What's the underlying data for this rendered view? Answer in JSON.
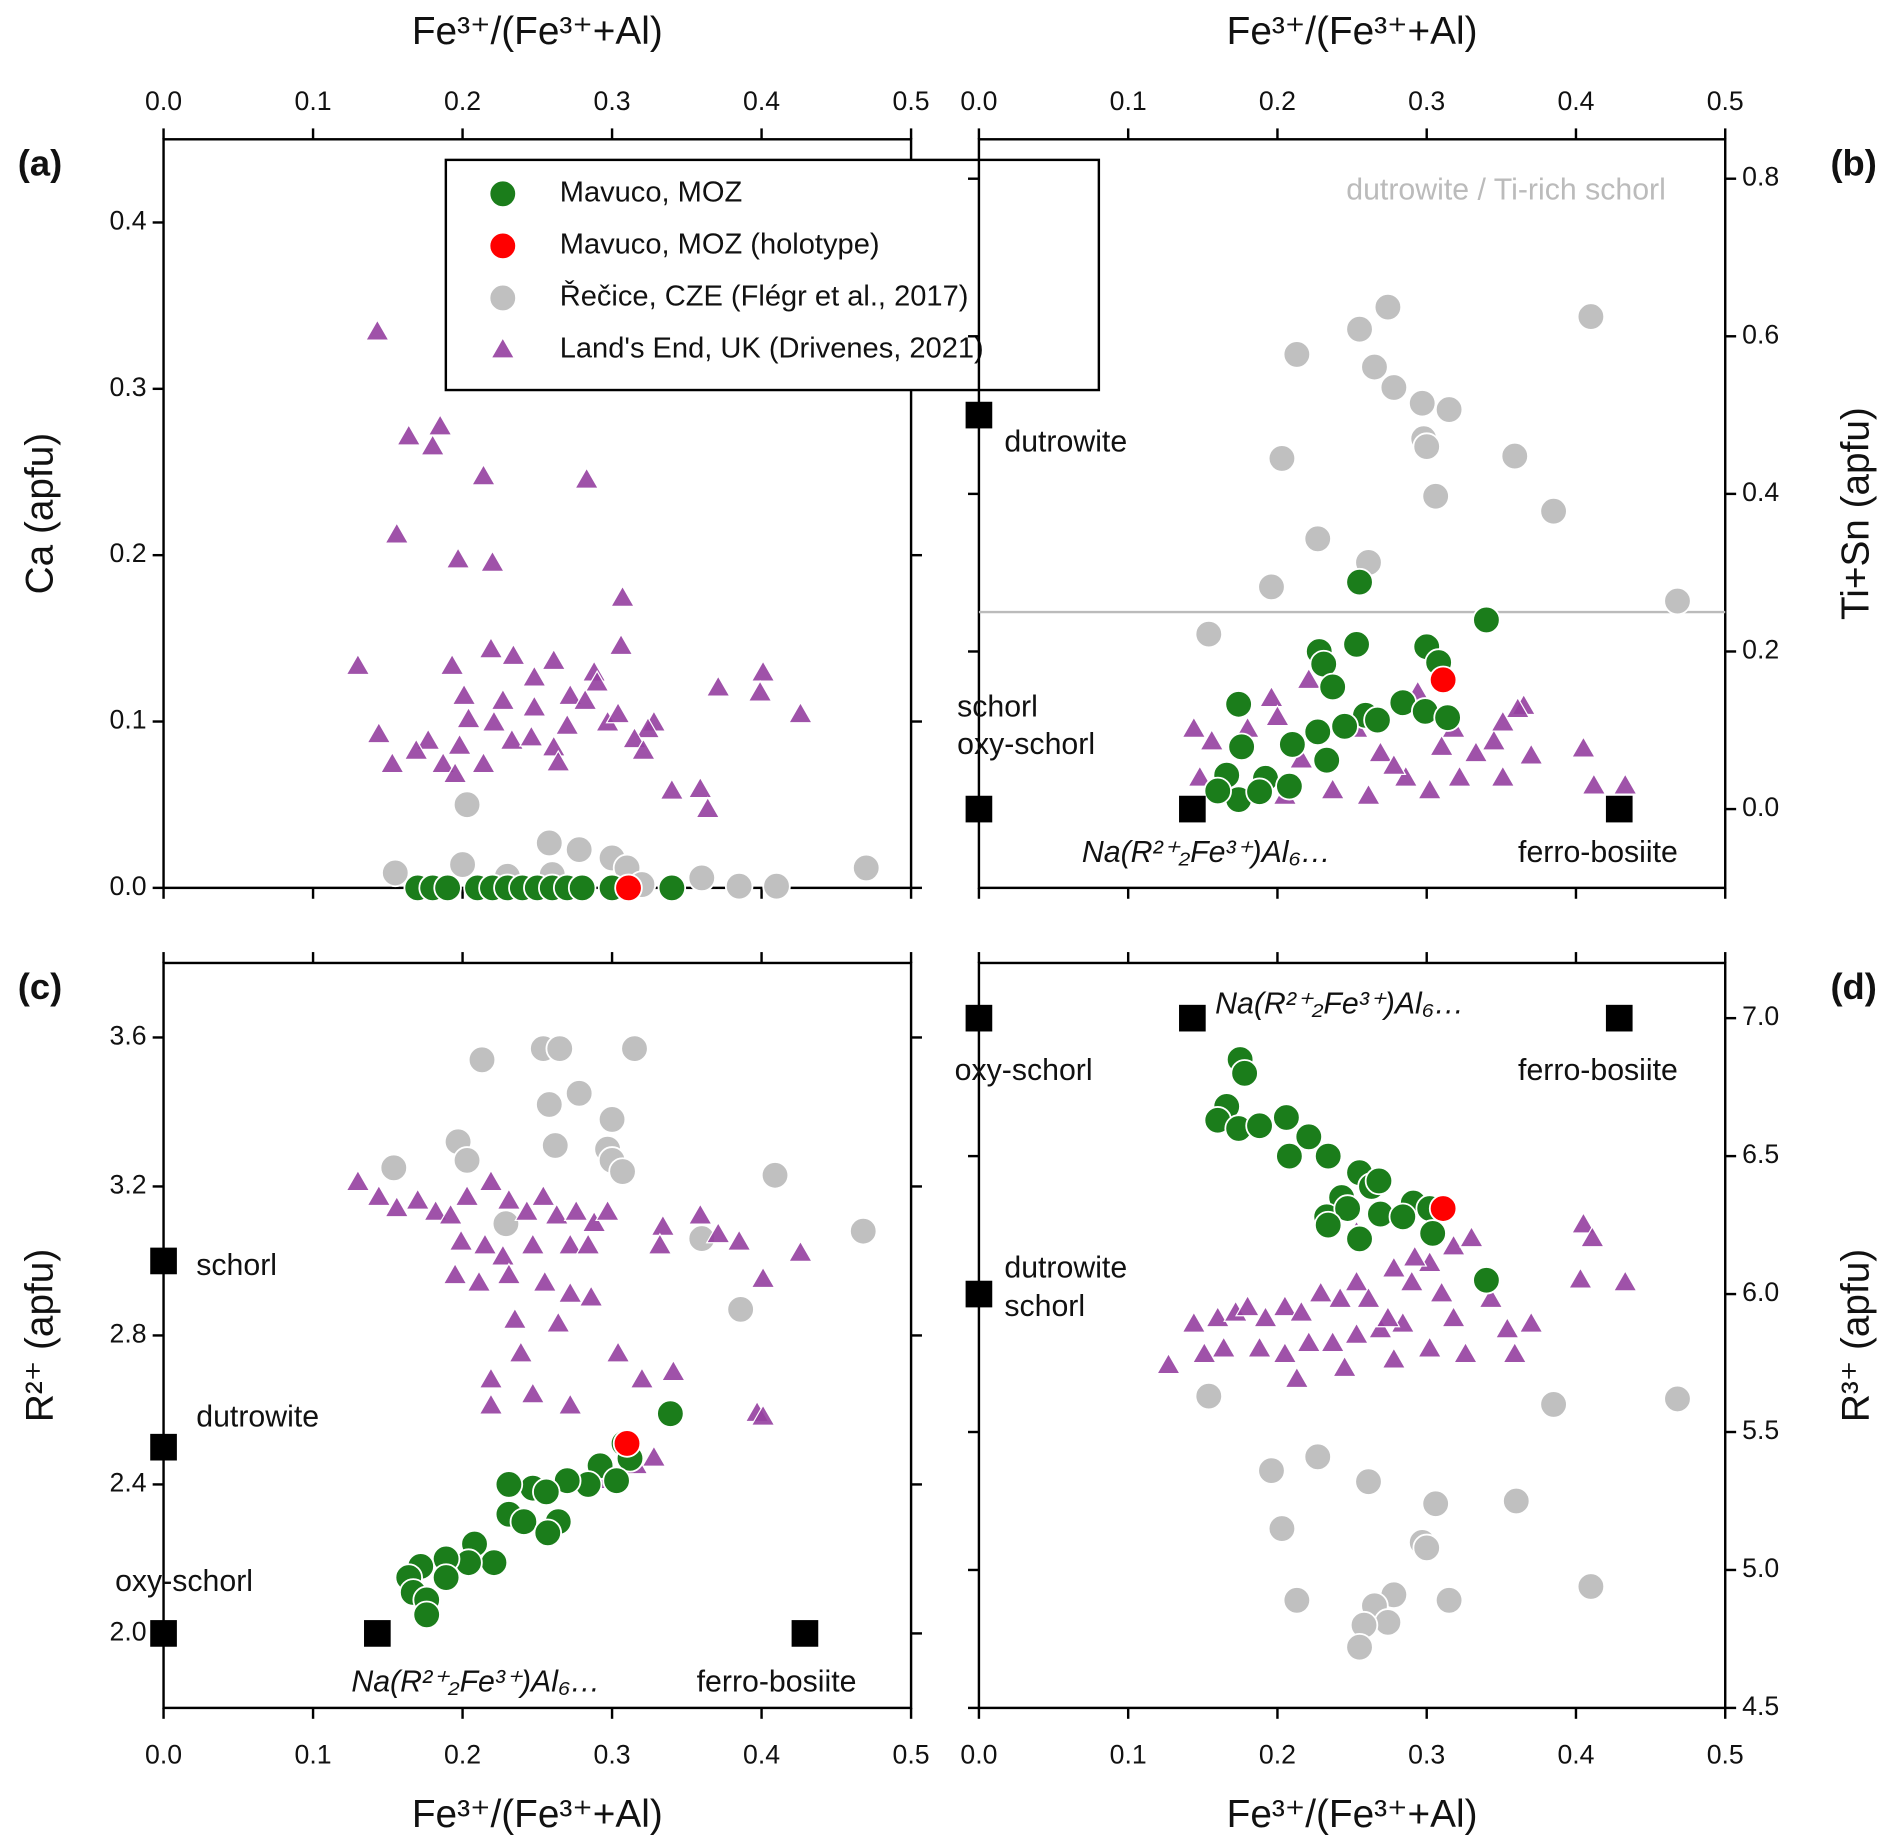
{
  "chart_data": [
    {
      "type": "scatter",
      "panel_label": "(a)",
      "xlabel": "Fe³⁺/(Fe³⁺+Al)",
      "ylabel": "Ca (apfu)",
      "xaxis_position": "top",
      "yaxis_position": "left",
      "xlim": [
        0,
        0.5
      ],
      "xticks": [
        {
          "value": 0,
          "label": "0.0"
        },
        0.1,
        0.2,
        0.3,
        0.4,
        0.5
      ],
      "ylim": [
        0,
        0.45
      ],
      "yticks": [
        {
          "value": 0,
          "label": "0.0"
        },
        0.1,
        0.2,
        0.3,
        0.4
      ],
      "legend": "top",
      "series": [
        {
          "name": "Mavuco, MOZ",
          "color": "#1b7d1b",
          "marker": "circle",
          "x": [
            0.17,
            0.18,
            0.19,
            0.21,
            0.22,
            0.23,
            0.24,
            0.25,
            0.26,
            0.27,
            0.28,
            0.3,
            0.34
          ],
          "values": [
            0,
            0,
            0,
            0,
            0,
            0,
            0,
            0,
            0,
            0,
            0,
            0,
            0
          ]
        },
        {
          "name": "Mavuco, MOZ (holotype)",
          "color": "#ff0000",
          "marker": "circle",
          "x": [
            0.311
          ],
          "values": [
            0
          ]
        },
        {
          "name": "Řečice, CZE (Flégr et al., 2017)",
          "color": "#c0c0c0",
          "marker": "circle",
          "x": [
            0.155,
            0.2,
            0.203,
            0.258,
            0.278,
            0.3,
            0.31,
            0.36,
            0.385,
            0.41,
            0.47,
            0.23,
            0.26,
            0.32
          ],
          "values": [
            0.009,
            0.014,
            0.05,
            0.027,
            0.023,
            0.018,
            0.012,
            0.006,
            0.001,
            0.001,
            0.012,
            0.007,
            0.008,
            0.002
          ]
        },
        {
          "name": "Land's End, UK (Drivenes, 2021)",
          "color": "#953fa0",
          "marker": "triangle",
          "x": [
            0.143,
            0.164,
            0.18,
            0.185,
            0.214,
            0.283,
            0.156,
            0.197,
            0.22,
            0.307,
            0.13,
            0.144,
            0.153,
            0.193,
            0.219,
            0.234,
            0.261,
            0.248,
            0.288,
            0.306,
            0.401,
            0.371,
            0.426,
            0.328,
            0.324,
            0.201,
            0.204,
            0.221,
            0.248,
            0.272,
            0.29,
            0.177,
            0.198,
            0.233,
            0.214,
            0.261,
            0.27,
            0.297,
            0.315,
            0.169,
            0.187,
            0.34,
            0.359,
            0.364,
            0.264,
            0.282,
            0.246,
            0.227,
            0.195,
            0.304,
            0.321,
            0.399
          ],
          "values": [
            0.334,
            0.271,
            0.265,
            0.277,
            0.247,
            0.245,
            0.212,
            0.197,
            0.195,
            0.174,
            0.133,
            0.092,
            0.074,
            0.133,
            0.143,
            0.139,
            0.136,
            0.126,
            0.129,
            0.145,
            0.129,
            0.12,
            0.104,
            0.099,
            0.095,
            0.115,
            0.101,
            0.099,
            0.108,
            0.115,
            0.123,
            0.088,
            0.085,
            0.088,
            0.074,
            0.084,
            0.097,
            0.099,
            0.089,
            0.082,
            0.074,
            0.058,
            0.059,
            0.047,
            0.075,
            0.112,
            0.09,
            0.112,
            0.068,
            0.104,
            0.082,
            0.117
          ]
        }
      ]
    },
    {
      "type": "scatter",
      "panel_label": "(b)",
      "xlabel": "Fe³⁺/(Fe³⁺+Al)",
      "ylabel": "Ti+Sn (apfu)",
      "xaxis_position": "top",
      "yaxis_position": "right",
      "xlim": [
        0,
        0.5
      ],
      "xticks": [
        {
          "value": 0,
          "label": "0.0"
        },
        0.1,
        0.2,
        0.3,
        0.4,
        0.5
      ],
      "ylim": [
        -0.1,
        0.85
      ],
      "yticks": [
        {
          "value": 0,
          "label": "0.0"
        },
        0.2,
        0.4,
        0.6,
        0.8
      ],
      "annotation": "dutrowite / Ti-rich schorl",
      "hlines": [
        {
          "y": 0.25,
          "color": "#bbbbbb"
        }
      ],
      "end_member_color": "#000000",
      "end_members": [
        {
          "x": 0,
          "y": 0.5,
          "labels": [
            "dutrowite"
          ]
        },
        {
          "x": 0,
          "y": 0,
          "labels": [
            "schorl",
            "oxy-schorl"
          ]
        },
        {
          "x": 0.143,
          "y": 0,
          "labels": [
            "Na(R²⁺₂Fe³⁺)Al₆…"
          ]
        },
        {
          "x": 0.429,
          "y": 0,
          "labels": [
            "ferro-bosiite"
          ]
        }
      ],
      "series": [
        {
          "color": "#1b7d1b",
          "marker": "circle",
          "x": [
            0.255,
            0.34,
            0.253,
            0.3,
            0.308,
            0.228,
            0.231,
            0.237,
            0.174,
            0.284,
            0.299,
            0.314,
            0.259,
            0.267,
            0.245,
            0.227,
            0.176,
            0.21,
            0.233,
            0.166,
            0.192,
            0.208,
            0.174,
            0.16,
            0.188
          ],
          "values": [
            0.288,
            0.24,
            0.209,
            0.206,
            0.186,
            0.2,
            0.184,
            0.155,
            0.133,
            0.135,
            0.124,
            0.116,
            0.119,
            0.113,
            0.105,
            0.098,
            0.079,
            0.082,
            0.062,
            0.043,
            0.039,
            0.029,
            0.012,
            0.023,
            0.022
          ]
        },
        {
          "color": "#ff0000",
          "marker": "circle",
          "x": [
            0.311
          ],
          "values": [
            0.164
          ]
        },
        {
          "color": "#c0c0c0",
          "marker": "circle",
          "x": [
            0.255,
            0.274,
            0.41,
            0.213,
            0.265,
            0.278,
            0.297,
            0.315,
            0.203,
            0.298,
            0.3,
            0.359,
            0.306,
            0.385,
            0.227,
            0.261,
            0.196,
            0.468,
            0.154
          ],
          "values": [
            0.609,
            0.637,
            0.625,
            0.577,
            0.561,
            0.535,
            0.515,
            0.507,
            0.445,
            0.47,
            0.46,
            0.448,
            0.397,
            0.378,
            0.343,
            0.313,
            0.282,
            0.264,
            0.222
          ]
        },
        {
          "color": "#953fa0",
          "marker": "triangle",
          "x": [
            0.365,
            0.361,
            0.405,
            0.433,
            0.412,
            0.37,
            0.144,
            0.156,
            0.196,
            0.221,
            0.294,
            0.318,
            0.333,
            0.345,
            0.269,
            0.286,
            0.302,
            0.261,
            0.237,
            0.278,
            0.216,
            0.2,
            0.253,
            0.31,
            0.351,
            0.322,
            0.148,
            0.18,
            0.351,
            0.205
          ],
          "values": [
            0.13,
            0.126,
            0.076,
            0.029,
            0.029,
            0.067,
            0.101,
            0.085,
            0.14,
            0.163,
            0.147,
            0.101,
            0.07,
            0.085,
            0.07,
            0.039,
            0.023,
            0.016,
            0.023,
            0.054,
            0.062,
            0.116,
            0.101,
            0.078,
            0.039,
            0.039,
            0.039,
            0.101,
            0.109,
            0.016
          ]
        }
      ]
    },
    {
      "type": "scatter",
      "panel_label": "(c)",
      "xlabel": "Fe³⁺/(Fe³⁺+Al)",
      "ylabel": "R²⁺ (apfu)",
      "xaxis_position": "bottom",
      "yaxis_position": "left",
      "xlim": [
        0,
        0.5
      ],
      "xticks": [
        {
          "value": 0,
          "label": "0.0"
        },
        0.1,
        0.2,
        0.3,
        0.4,
        0.5
      ],
      "ylim": [
        1.8,
        3.8
      ],
      "yticks": [
        {
          "value": 2,
          "label": "2.0"
        },
        2.4,
        2.8,
        3.2,
        3.6
      ],
      "end_member_color": "#000000",
      "end_members": [
        {
          "x": 0,
          "y": 3.0,
          "labels": [
            "schorl"
          ]
        },
        {
          "x": 0,
          "y": 2.5,
          "labels": [
            "dutrowite"
          ]
        },
        {
          "x": 0,
          "y": 2.0,
          "labels": [
            "oxy-schorl"
          ]
        },
        {
          "x": 0.143,
          "y": 2.0,
          "labels": [
            "Na(R²⁺₂Fe³⁺)Al₆…"
          ]
        },
        {
          "x": 0.429,
          "y": 2.0,
          "labels": [
            "ferro-bosiite"
          ]
        }
      ],
      "series": [
        {
          "color": "#1b7d1b",
          "marker": "circle",
          "x": [
            0.339,
            0.308,
            0.312,
            0.292,
            0.303,
            0.284,
            0.27,
            0.247,
            0.231,
            0.256,
            0.231,
            0.241,
            0.264,
            0.257,
            0.208,
            0.221,
            0.204,
            0.189,
            0.172,
            0.164,
            0.189,
            0.167,
            0.176,
            0.176
          ],
          "values": [
            2.59,
            2.51,
            2.47,
            2.45,
            2.41,
            2.4,
            2.41,
            2.39,
            2.4,
            2.38,
            2.32,
            2.3,
            2.3,
            2.27,
            2.24,
            2.19,
            2.19,
            2.2,
            2.18,
            2.15,
            2.15,
            2.11,
            2.09,
            2.05
          ]
        },
        {
          "color": "#ff0000",
          "marker": "circle",
          "x": [
            0.31
          ],
          "values": [
            2.51
          ]
        },
        {
          "color": "#c0c0c0",
          "marker": "circle",
          "x": [
            0.254,
            0.265,
            0.315,
            0.213,
            0.278,
            0.258,
            0.3,
            0.197,
            0.262,
            0.203,
            0.297,
            0.3,
            0.307,
            0.154,
            0.409,
            0.468,
            0.36,
            0.386,
            0.229
          ],
          "values": [
            3.57,
            3.57,
            3.57,
            3.54,
            3.45,
            3.42,
            3.38,
            3.32,
            3.31,
            3.27,
            3.3,
            3.27,
            3.24,
            3.25,
            3.23,
            3.08,
            3.06,
            2.87,
            3.1
          ]
        },
        {
          "color": "#953fa0",
          "marker": "triangle",
          "x": [
            0.13,
            0.144,
            0.156,
            0.17,
            0.182,
            0.192,
            0.203,
            0.219,
            0.231,
            0.243,
            0.254,
            0.263,
            0.276,
            0.288,
            0.297,
            0.199,
            0.215,
            0.227,
            0.247,
            0.272,
            0.284,
            0.334,
            0.359,
            0.371,
            0.332,
            0.195,
            0.211,
            0.231,
            0.255,
            0.272,
            0.286,
            0.401,
            0.426,
            0.385,
            0.235,
            0.264,
            0.239,
            0.304,
            0.219,
            0.341,
            0.32,
            0.247,
            0.272,
            0.219,
            0.397,
            0.401,
            0.328,
            0.316,
            0.292
          ],
          "values": [
            3.21,
            3.17,
            3.14,
            3.16,
            3.13,
            3.12,
            3.17,
            3.21,
            3.16,
            3.13,
            3.17,
            3.12,
            3.13,
            3.1,
            3.13,
            3.05,
            3.04,
            3.01,
            3.04,
            3.04,
            3.04,
            3.09,
            3.12,
            3.07,
            3.04,
            2.96,
            2.94,
            2.96,
            2.94,
            2.91,
            2.9,
            2.95,
            3.02,
            3.05,
            2.84,
            2.83,
            2.75,
            2.75,
            2.68,
            2.7,
            2.68,
            2.64,
            2.61,
            2.61,
            2.59,
            2.58,
            2.47,
            2.45,
            2.41
          ]
        }
      ]
    },
    {
      "type": "scatter",
      "panel_label": "(d)",
      "xlabel": "Fe³⁺/(Fe³⁺+Al)",
      "ylabel": "R³⁺ (apfu)",
      "xaxis_position": "bottom",
      "yaxis_position": "right",
      "xlim": [
        0,
        0.5
      ],
      "xticks": [
        {
          "value": 0,
          "label": "0.0"
        },
        0.1,
        0.2,
        0.3,
        0.4,
        0.5
      ],
      "ylim": [
        4.5,
        7.2
      ],
      "yticks": [
        4.5,
        {
          "value": 5,
          "label": "5.0"
        },
        5.5,
        {
          "value": 6,
          "label": "6.0"
        },
        6.5,
        {
          "value": 7,
          "label": "7.0"
        }
      ],
      "end_member_color": "#000000",
      "end_members": [
        {
          "x": 0,
          "y": 7.0,
          "labels": [
            "oxy-schorl"
          ]
        },
        {
          "x": 0.143,
          "y": 7.0,
          "labels": [
            "Na(R²⁺₂Fe³⁺)Al₆…"
          ]
        },
        {
          "x": 0.429,
          "y": 7.0,
          "labels": [
            "ferro-bosiite"
          ]
        },
        {
          "x": 0,
          "y": 6.0,
          "labels": [
            "dutrowite",
            "schorl"
          ]
        }
      ],
      "series": [
        {
          "color": "#1b7d1b",
          "marker": "circle",
          "x": [
            0.175,
            0.178,
            0.166,
            0.16,
            0.174,
            0.188,
            0.206,
            0.221,
            0.208,
            0.234,
            0.255,
            0.263,
            0.268,
            0.243,
            0.233,
            0.247,
            0.269,
            0.291,
            0.302,
            0.284,
            0.255,
            0.234,
            0.304,
            0.34
          ],
          "values": [
            6.85,
            6.8,
            6.68,
            6.63,
            6.6,
            6.61,
            6.64,
            6.57,
            6.5,
            6.5,
            6.44,
            6.39,
            6.41,
            6.35,
            6.28,
            6.31,
            6.29,
            6.33,
            6.31,
            6.28,
            6.2,
            6.25,
            6.22,
            6.05
          ]
        },
        {
          "color": "#ff0000",
          "marker": "circle",
          "x": [
            0.311
          ],
          "values": [
            6.31
          ]
        },
        {
          "color": "#c0c0c0",
          "marker": "circle",
          "x": [
            0.154,
            0.196,
            0.203,
            0.227,
            0.261,
            0.306,
            0.297,
            0.3,
            0.36,
            0.385,
            0.468,
            0.41,
            0.213,
            0.278,
            0.265,
            0.315,
            0.274,
            0.258,
            0.255
          ],
          "values": [
            5.63,
            5.36,
            5.15,
            5.41,
            5.32,
            5.24,
            5.1,
            5.08,
            5.25,
            5.6,
            5.62,
            4.94,
            4.89,
            4.91,
            4.87,
            4.89,
            4.81,
            4.8,
            4.72
          ]
        },
        {
          "color": "#953fa0",
          "marker": "triangle",
          "x": [
            0.405,
            0.411,
            0.433,
            0.403,
            0.127,
            0.144,
            0.16,
            0.172,
            0.18,
            0.192,
            0.205,
            0.216,
            0.229,
            0.242,
            0.253,
            0.261,
            0.278,
            0.29,
            0.302,
            0.318,
            0.33,
            0.31,
            0.318,
            0.343,
            0.284,
            0.269,
            0.253,
            0.237,
            0.221,
            0.205,
            0.188,
            0.164,
            0.151,
            0.213,
            0.245,
            0.278,
            0.302,
            0.326,
            0.354,
            0.37,
            0.359,
            0.253,
            0.292,
            0.274
          ],
          "values": [
            6.25,
            6.2,
            6.04,
            6.05,
            5.74,
            5.89,
            5.91,
            5.93,
            5.95,
            5.91,
            5.95,
            5.93,
            6.0,
            5.98,
            6.04,
            5.98,
            6.09,
            6.04,
            6.11,
            6.17,
            6.2,
            6.0,
            5.91,
            5.98,
            5.89,
            5.87,
            5.85,
            5.82,
            5.82,
            5.78,
            5.8,
            5.8,
            5.78,
            5.69,
            5.73,
            5.76,
            5.8,
            5.78,
            5.87,
            5.89,
            5.78,
            6.22,
            6.13,
            5.91
          ]
        }
      ]
    }
  ]
}
